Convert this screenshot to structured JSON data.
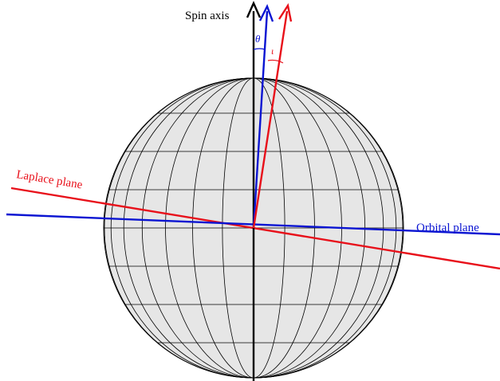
{
  "labels": {
    "spin_axis": "Spin axis",
    "laplace_plane": "Laplace plane",
    "orbital_plane": "Orbital plane",
    "theta": "θ",
    "iota": "ι"
  },
  "colors": {
    "spin": "#000000",
    "orbital": "#0a14d2",
    "laplace": "#e8101a",
    "sphere_fill": "#e6e6e6",
    "grid": "#000000"
  }
}
